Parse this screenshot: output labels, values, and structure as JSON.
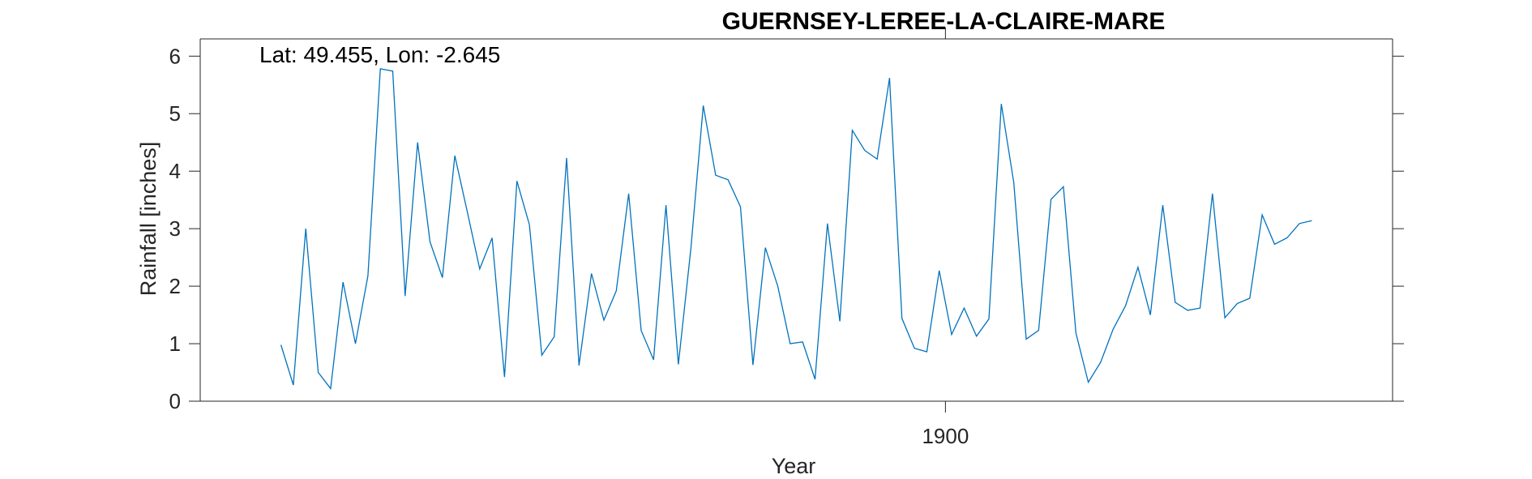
{
  "chart_data": {
    "type": "line",
    "title": "GUERNSEY-LEREE-LA-CLAIRE-MARE",
    "annotation": "Lat: 49.455, Lon: -2.645",
    "xlabel": "Year",
    "ylabel": "Rainfall [inches]",
    "xlim": [
      1840,
      1936
    ],
    "ylim": [
      0,
      6.3
    ],
    "yticks": [
      0,
      1,
      2,
      3,
      4,
      5,
      6
    ],
    "xticks": [
      1900
    ],
    "grid": false,
    "legend": "none",
    "line_color": "#0072BD",
    "series": [
      {
        "x": [
          1846.5,
          1847.5,
          1848.5,
          1849.5,
          1850.5,
          1851.5,
          1852.5,
          1853.5,
          1854.5,
          1855.5,
          1856.5,
          1857.5,
          1858.5,
          1859.5,
          1860.5,
          1861.5,
          1862.5,
          1863.5,
          1864.5,
          1865.5,
          1866.5,
          1867.5,
          1868.5,
          1869.5,
          1870.5,
          1871.5,
          1872.5,
          1873.5,
          1874.5,
          1875.5,
          1876.5,
          1877.5,
          1878.5,
          1879.5,
          1880.5,
          1881.5,
          1882.5,
          1883.5,
          1884.5,
          1885.5,
          1886.5,
          1887.5,
          1888.5,
          1889.5,
          1890.5,
          1891.5,
          1892.5,
          1893.5,
          1894.5,
          1895.5,
          1896.5,
          1897.5,
          1898.5,
          1899.5,
          1900.5,
          1901.5,
          1902.5,
          1903.5,
          1904.5,
          1905.5,
          1906.5,
          1907.5,
          1908.5,
          1909.5,
          1910.5,
          1911.5,
          1912.5,
          1913.5,
          1914.5,
          1915.5,
          1916.5,
          1917.5,
          1918.5,
          1919.5,
          1920.5,
          1921.5,
          1922.5,
          1923.5,
          1924.5,
          1925.5,
          1926.5,
          1927.5,
          1928.5,
          1929.5
        ],
        "y": [
          0.98,
          0.28,
          3.0,
          0.5,
          0.22,
          2.07,
          1.0,
          2.18,
          5.78,
          5.74,
          1.83,
          4.5,
          2.77,
          2.15,
          4.27,
          3.3,
          2.3,
          2.84,
          0.42,
          3.83,
          3.07,
          0.8,
          1.12,
          4.23,
          0.62,
          2.22,
          1.41,
          1.92,
          3.61,
          1.23,
          0.72,
          3.41,
          0.64,
          2.65,
          5.14,
          3.93,
          3.85,
          3.38,
          0.63,
          2.67,
          2.0,
          1.0,
          1.03,
          0.38,
          3.09,
          1.39,
          4.71,
          4.36,
          4.21,
          5.62,
          1.44,
          0.92,
          0.86,
          2.27,
          1.16,
          1.62,
          1.13,
          1.43,
          5.17,
          3.8,
          1.08,
          1.23,
          3.51,
          3.73,
          1.19,
          0.33,
          0.68,
          1.25,
          1.66,
          2.33,
          1.5,
          3.41,
          1.72,
          1.58,
          1.62,
          3.61,
          1.45,
          1.7,
          1.79,
          3.24,
          2.73,
          2.84,
          3.09,
          3.14
        ]
      }
    ]
  }
}
